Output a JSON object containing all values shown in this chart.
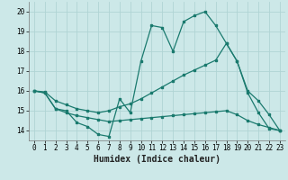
{
  "xlabel": "Humidex (Indice chaleur)",
  "xlim": [
    -0.5,
    23.5
  ],
  "ylim": [
    13.5,
    20.5
  ],
  "yticks": [
    14,
    15,
    16,
    17,
    18,
    19,
    20
  ],
  "xticks": [
    0,
    1,
    2,
    3,
    4,
    5,
    6,
    7,
    8,
    9,
    10,
    11,
    12,
    13,
    14,
    15,
    16,
    17,
    18,
    19,
    20,
    21,
    22,
    23
  ],
  "bg_color": "#cce8e8",
  "grid_color": "#b0d4d4",
  "line_color": "#1a7a6e",
  "line1_y": [
    16.0,
    15.9,
    15.1,
    15.0,
    14.4,
    14.2,
    13.8,
    13.7,
    15.6,
    14.9,
    17.5,
    19.3,
    19.2,
    18.0,
    19.5,
    19.8,
    20.0,
    19.3,
    18.4,
    17.5,
    15.9,
    14.9,
    14.1,
    14.0
  ],
  "line2_y": [
    16.0,
    15.95,
    15.5,
    15.3,
    15.1,
    15.0,
    14.9,
    15.0,
    15.2,
    15.35,
    15.6,
    15.9,
    16.2,
    16.5,
    16.8,
    17.05,
    17.3,
    17.55,
    18.4,
    17.5,
    16.0,
    15.5,
    14.8,
    14.0
  ],
  "line3_y": [
    16.0,
    15.9,
    15.1,
    14.9,
    14.75,
    14.65,
    14.55,
    14.45,
    14.5,
    14.55,
    14.6,
    14.65,
    14.7,
    14.75,
    14.8,
    14.85,
    14.9,
    14.95,
    15.0,
    14.8,
    14.5,
    14.3,
    14.15,
    14.0
  ],
  "xlabel_fontsize": 7,
  "tick_fontsize": 5.5,
  "lw": 0.9,
  "ms": 2.0
}
